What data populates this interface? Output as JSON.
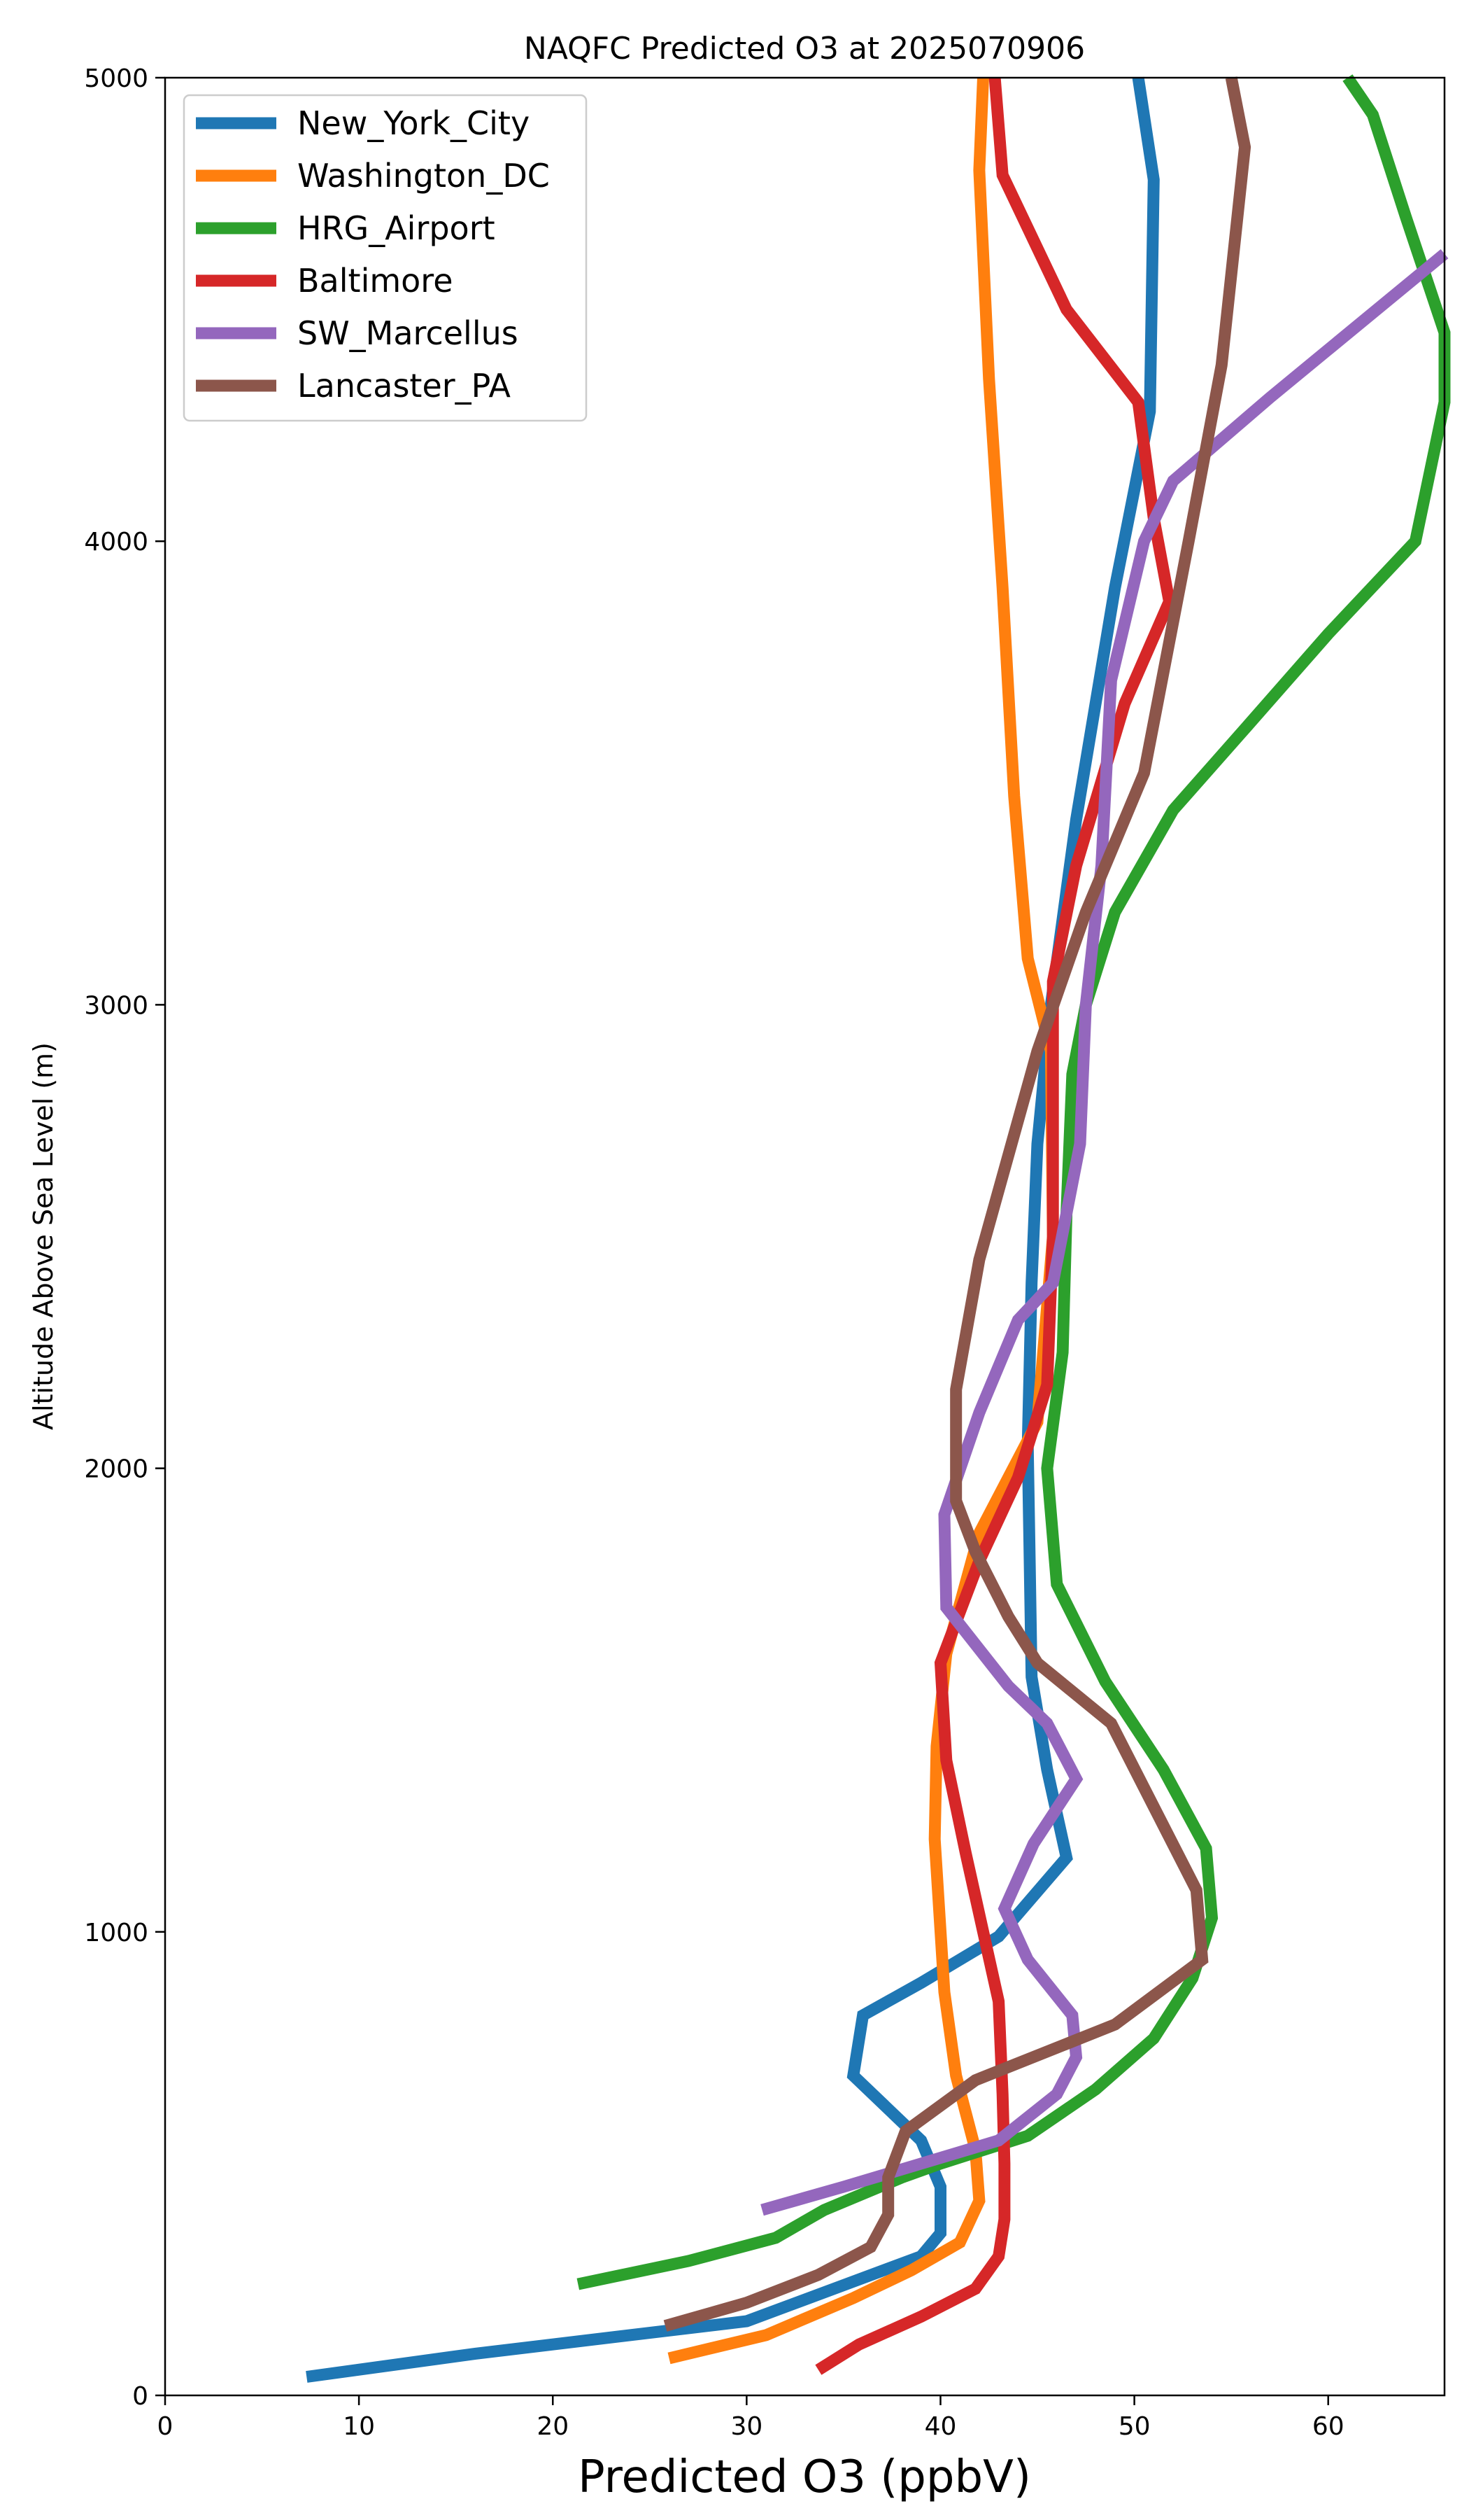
{
  "chart_data": {
    "type": "line",
    "title": "NAQFC Predicted O3 at 2025070906",
    "xlabel": "Predicted O3 (ppbV)",
    "ylabel": "Altitude Above Sea Level (m)",
    "xlim": [
      0,
      66
    ],
    "ylim": [
      0,
      5000
    ],
    "xticks": [
      0,
      10,
      20,
      30,
      40,
      50,
      60
    ],
    "yticks": [
      0,
      1000,
      2000,
      3000,
      4000,
      5000
    ],
    "grid": false,
    "legend_position": "top-left",
    "series": [
      {
        "name": "New_York_City",
        "color": "#1f77b4",
        "points": [
          [
            7.3,
            40
          ],
          [
            16,
            90
          ],
          [
            30,
            160
          ],
          [
            39,
            300
          ],
          [
            40,
            350
          ],
          [
            40,
            450
          ],
          [
            39,
            550
          ],
          [
            35.5,
            690
          ],
          [
            36,
            820
          ],
          [
            39,
            890
          ],
          [
            43,
            990
          ],
          [
            46.5,
            1160
          ],
          [
            45.5,
            1350
          ],
          [
            44.7,
            1550
          ],
          [
            44.6,
            1800
          ],
          [
            44.5,
            2050
          ],
          [
            44.7,
            2400
          ],
          [
            45,
            2700
          ],
          [
            45.7,
            3000
          ],
          [
            47,
            3400
          ],
          [
            49,
            3900
          ],
          [
            50.8,
            4280
          ],
          [
            51,
            4780
          ],
          [
            50.2,
            5000
          ]
        ]
      },
      {
        "name": "Washington_DC",
        "color": "#ff7f0e",
        "points": [
          [
            26,
            80
          ],
          [
            31,
            130
          ],
          [
            35.5,
            210
          ],
          [
            38.5,
            270
          ],
          [
            41,
            330
          ],
          [
            42,
            420
          ],
          [
            41.8,
            530
          ],
          [
            40.8,
            690
          ],
          [
            40.2,
            870
          ],
          [
            39.7,
            1200
          ],
          [
            39.8,
            1400
          ],
          [
            40.3,
            1600
          ],
          [
            42,
            1860
          ],
          [
            45,
            2100
          ],
          [
            45.8,
            2500
          ],
          [
            45.7,
            2900
          ],
          [
            44.5,
            3100
          ],
          [
            43.8,
            3450
          ],
          [
            43.2,
            3900
          ],
          [
            42.5,
            4350
          ],
          [
            42,
            4800
          ],
          [
            42.2,
            5000
          ]
        ]
      },
      {
        "name": "HRG_Airport",
        "color": "#2ca02c",
        "points": [
          [
            21.3,
            240
          ],
          [
            27,
            290
          ],
          [
            31.5,
            340
          ],
          [
            34,
            400
          ],
          [
            38,
            470
          ],
          [
            40,
            500
          ],
          [
            44.5,
            560
          ],
          [
            48,
            660
          ],
          [
            51,
            770
          ],
          [
            53,
            900
          ],
          [
            54,
            1030
          ],
          [
            53.7,
            1180
          ],
          [
            51.5,
            1350
          ],
          [
            48.5,
            1540
          ],
          [
            46,
            1750
          ],
          [
            45.5,
            2000
          ],
          [
            46.3,
            2250
          ],
          [
            46.5,
            2550
          ],
          [
            46.8,
            2850
          ],
          [
            47.5,
            3000
          ],
          [
            49,
            3200
          ],
          [
            52,
            3420
          ],
          [
            55.8,
            3600
          ],
          [
            60,
            3800
          ],
          [
            64.5,
            4000
          ],
          [
            66,
            4300
          ],
          [
            66,
            4450
          ],
          [
            64,
            4700
          ],
          [
            62.3,
            4920
          ],
          [
            61,
            5000
          ]
        ]
      },
      {
        "name": "Baltimore",
        "color": "#d62728",
        "points": [
          [
            33.7,
            55
          ],
          [
            35.8,
            110
          ],
          [
            39,
            170
          ],
          [
            41.8,
            230
          ],
          [
            43,
            300
          ],
          [
            43.3,
            380
          ],
          [
            43.3,
            500
          ],
          [
            43.2,
            650
          ],
          [
            43,
            850
          ],
          [
            42.2,
            1000
          ],
          [
            41.3,
            1170
          ],
          [
            40.3,
            1370
          ],
          [
            40,
            1580
          ],
          [
            42,
            1800
          ],
          [
            44,
            1980
          ],
          [
            45.5,
            2180
          ],
          [
            45.8,
            2500
          ],
          [
            45.8,
            3050
          ],
          [
            47,
            3300
          ],
          [
            49.5,
            3650
          ],
          [
            51.8,
            3870
          ],
          [
            51,
            4050
          ],
          [
            50.2,
            4300
          ],
          [
            46.5,
            4500
          ],
          [
            43.2,
            4790
          ],
          [
            42.8,
            5000
          ]
        ]
      },
      {
        "name": "SW_Marcellus",
        "color": "#9467bd",
        "points": [
          [
            30.8,
            400
          ],
          [
            35,
            450
          ],
          [
            39,
            500
          ],
          [
            43,
            550
          ],
          [
            46,
            650
          ],
          [
            47,
            730
          ],
          [
            46.8,
            820
          ],
          [
            44.5,
            940
          ],
          [
            43.3,
            1050
          ],
          [
            44.8,
            1190
          ],
          [
            47,
            1330
          ],
          [
            45.5,
            1450
          ],
          [
            43.5,
            1530
          ],
          [
            40.3,
            1700
          ],
          [
            40.2,
            1900
          ],
          [
            42,
            2120
          ],
          [
            44,
            2320
          ],
          [
            45.8,
            2400
          ],
          [
            47.2,
            2700
          ],
          [
            47.5,
            3000
          ],
          [
            48.3,
            3300
          ],
          [
            48.8,
            3700
          ],
          [
            50.5,
            4000
          ],
          [
            52,
            4130
          ],
          [
            57,
            4310
          ],
          [
            66,
            4620
          ]
        ]
      },
      {
        "name": "Lancaster_PA",
        "color": "#8c564b",
        "points": [
          [
            25.8,
            150
          ],
          [
            30,
            200
          ],
          [
            33.7,
            260
          ],
          [
            36.4,
            320
          ],
          [
            37.3,
            390
          ],
          [
            37.3,
            470
          ],
          [
            38.2,
            570
          ],
          [
            41.8,
            680
          ],
          [
            49,
            800
          ],
          [
            53.5,
            940
          ],
          [
            53.2,
            1090
          ],
          [
            51,
            1270
          ],
          [
            48.8,
            1450
          ],
          [
            45,
            1580
          ],
          [
            43.5,
            1680
          ],
          [
            41.8,
            1820
          ],
          [
            40.8,
            1930
          ],
          [
            40.8,
            2170
          ],
          [
            42,
            2450
          ],
          [
            45,
            2900
          ],
          [
            47.5,
            3200
          ],
          [
            50.5,
            3500
          ],
          [
            52.8,
            4000
          ],
          [
            54.5,
            4380
          ],
          [
            55.7,
            4850
          ],
          [
            55,
            5000
          ]
        ]
      }
    ]
  }
}
